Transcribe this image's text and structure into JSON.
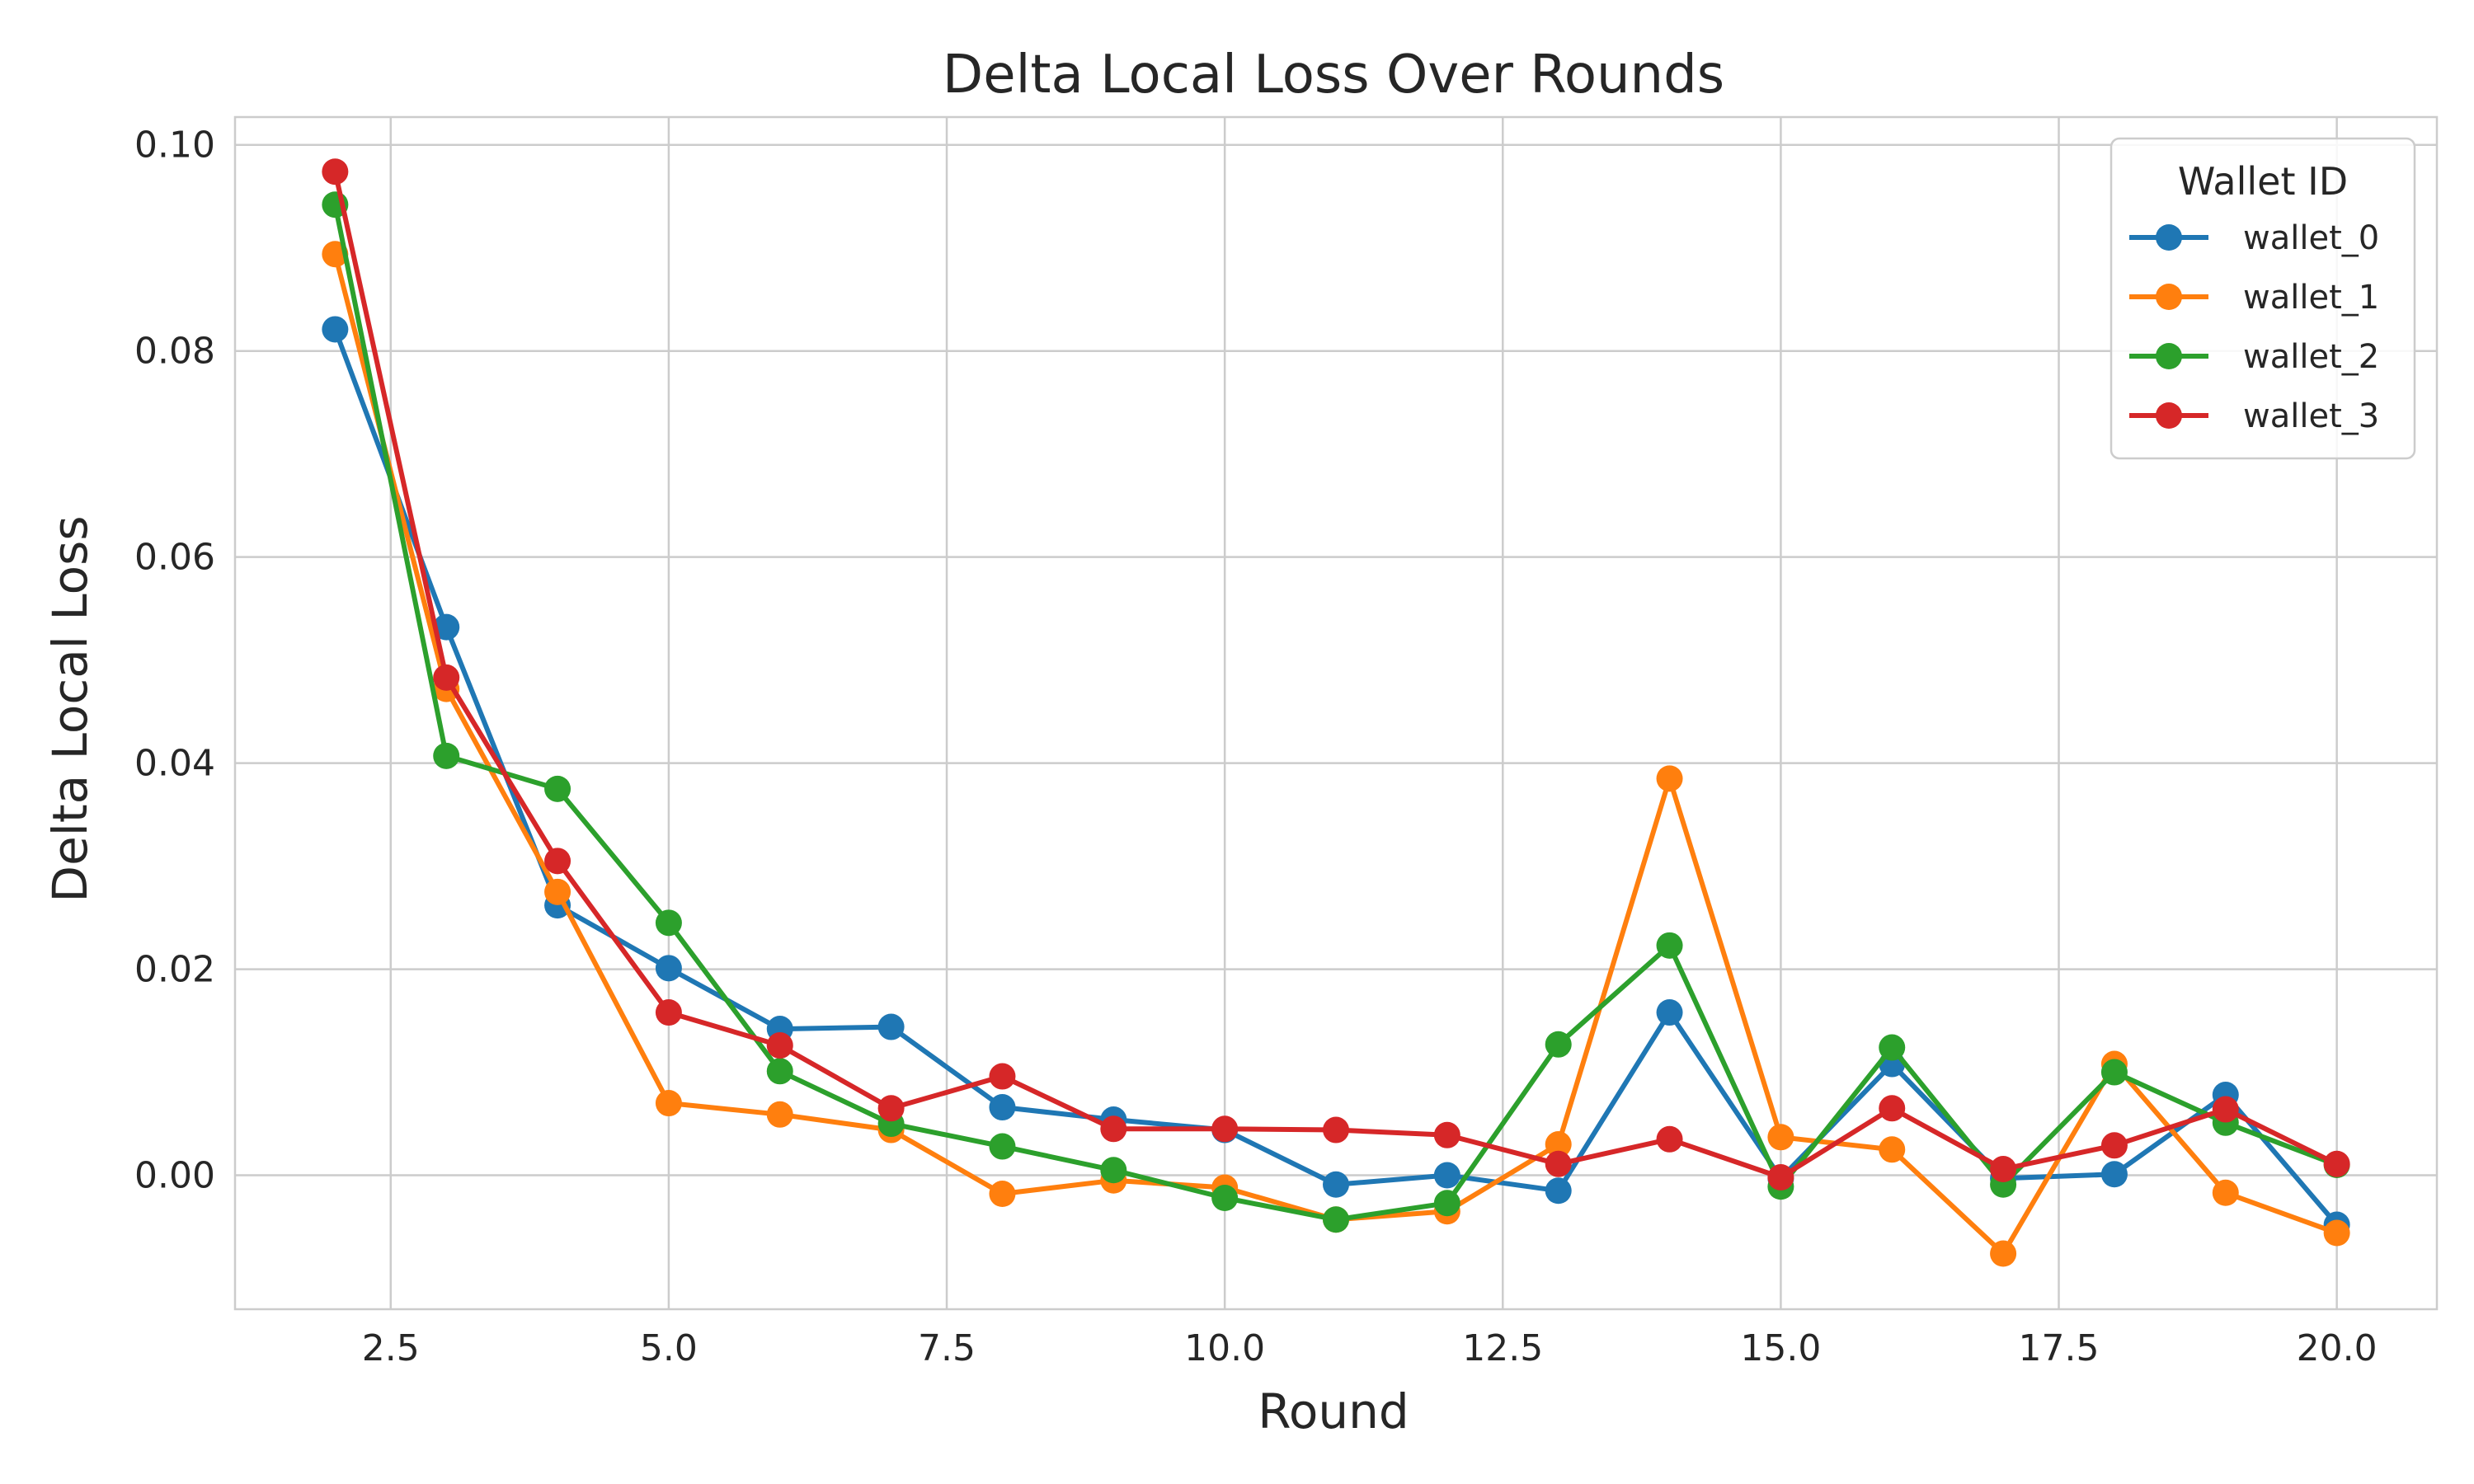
{
  "chart_data": {
    "type": "line",
    "title": "Delta Local Loss Over Rounds",
    "xlabel": "Round",
    "ylabel": "Delta Local Loss",
    "xlim": [
      1.1,
      20.9
    ],
    "ylim": [
      -0.013,
      0.1027
    ],
    "x_ticks": [
      2.5,
      5.0,
      7.5,
      10.0,
      12.5,
      15.0,
      17.5,
      20.0
    ],
    "x_tick_labels": [
      "2.5",
      "5.0",
      "7.5",
      "10.0",
      "12.5",
      "15.0",
      "17.5",
      "20.0"
    ],
    "y_ticks": [
      0.0,
      0.02,
      0.04,
      0.06,
      0.08,
      0.1
    ],
    "y_tick_labels": [
      "0.00",
      "0.02",
      "0.04",
      "0.06",
      "0.08",
      "0.10"
    ],
    "grid": true,
    "legend": {
      "title": "Wallet ID",
      "placement": "top-right"
    },
    "x": [
      2,
      3,
      4,
      5,
      6,
      7,
      8,
      9,
      10,
      11,
      12,
      13,
      14,
      15,
      16,
      17,
      18,
      19,
      20
    ],
    "series": [
      {
        "name": "wallet_0",
        "color": "#1f77b4",
        "values": [
          0.0821,
          0.0532,
          0.0262,
          0.0201,
          0.0142,
          0.0144,
          0.0066,
          0.0054,
          0.0044,
          -0.0009,
          0.0,
          -0.0015,
          0.0158,
          -0.0003,
          0.0108,
          -0.0003,
          0.0001,
          0.0078,
          -0.0048
        ]
      },
      {
        "name": "wallet_1",
        "color": "#ff7f0e",
        "values": [
          0.0894,
          0.0472,
          0.0275,
          0.007,
          0.0059,
          0.0044,
          -0.0018,
          -0.0005,
          -0.0012,
          -0.0043,
          -0.0035,
          0.003,
          0.0385,
          0.0037,
          0.0025,
          -0.0076,
          0.0108,
          -0.0017,
          -0.0056
        ]
      },
      {
        "name": "wallet_2",
        "color": "#2ca02c",
        "values": [
          0.0942,
          0.0407,
          0.0375,
          0.0245,
          0.0101,
          0.005,
          0.0028,
          0.0005,
          -0.0022,
          -0.0043,
          -0.0027,
          0.0127,
          0.0223,
          -0.0011,
          0.0124,
          -0.0009,
          0.01,
          0.0051,
          0.001
        ]
      },
      {
        "name": "wallet_3",
        "color": "#d62728",
        "values": [
          0.0974,
          0.0483,
          0.0305,
          0.0158,
          0.0126,
          0.0065,
          0.0096,
          0.0045,
          0.0045,
          0.0044,
          0.0039,
          0.0011,
          0.0035,
          -0.0002,
          0.0065,
          0.0006,
          0.0029,
          0.0064,
          0.0011
        ]
      }
    ]
  }
}
